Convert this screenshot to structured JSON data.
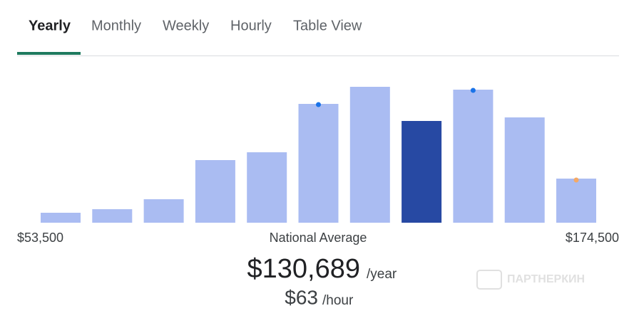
{
  "tabs": [
    {
      "label": "Yearly",
      "active": true
    },
    {
      "label": "Monthly",
      "active": false
    },
    {
      "label": "Weekly",
      "active": false
    },
    {
      "label": "Hourly",
      "active": false
    },
    {
      "label": "Table View",
      "active": false
    }
  ],
  "chart_data": {
    "type": "bar",
    "values": [
      14,
      19,
      33,
      88,
      99,
      167,
      191,
      143,
      187,
      148,
      62
    ],
    "color": "#aabcf2",
    "highlight_index": 7,
    "highlight_color": "#2749a3",
    "markers": [
      {
        "index": 5,
        "color": "#1a73e8"
      },
      {
        "index": 8,
        "color": "#1a73e8"
      },
      {
        "index": 10,
        "color": "#f4a966"
      }
    ],
    "x_min_label": "$53,500",
    "x_mid_label": "National Average",
    "x_max_label": "$174,500"
  },
  "salary": {
    "amount": "$130,689",
    "unit": "/year",
    "hourly": "$63",
    "hourly_unit": "/hour"
  },
  "watermark": "ПАРТНЕРКИН"
}
